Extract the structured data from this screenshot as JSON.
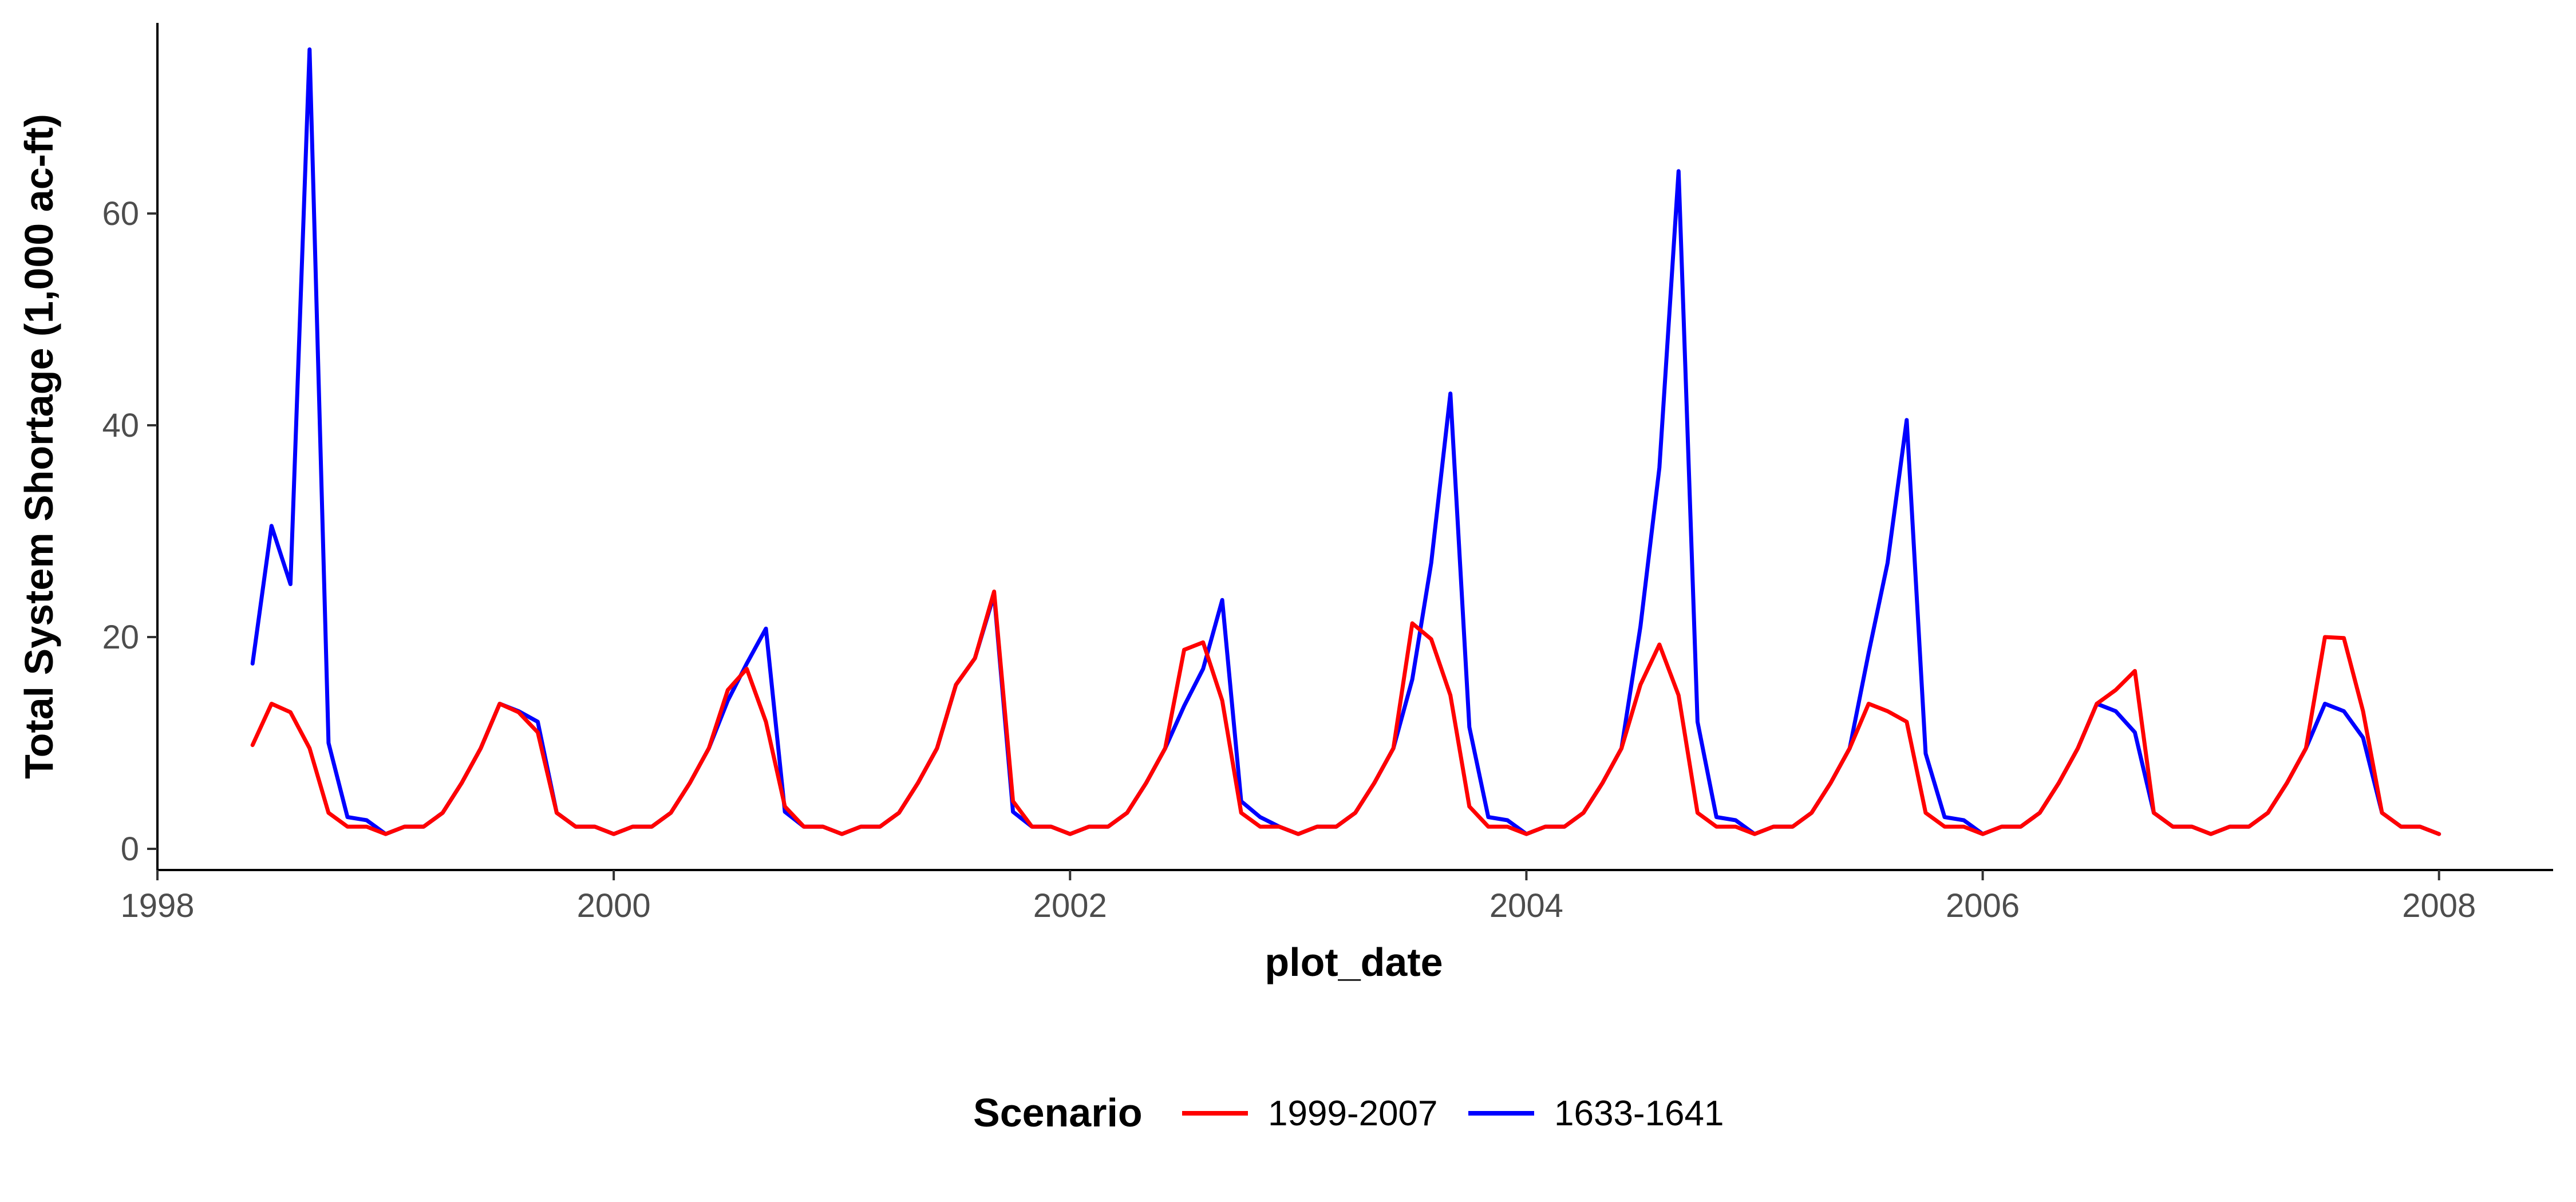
{
  "chart_data": {
    "type": "line",
    "xlabel": "plot_date",
    "ylabel": "Total System Shortage (1,000 ac-ft)",
    "x_ticks": [
      "1998",
      "2000",
      "2002",
      "2004",
      "2006",
      "2008"
    ],
    "y_ticks": [
      "0",
      "20",
      "40",
      "60"
    ],
    "xlim": [
      1998.0,
      2008.5
    ],
    "ylim": [
      -2,
      78
    ],
    "grid": false,
    "legend": {
      "title": "Scenario",
      "position": "bottom"
    },
    "series": [
      {
        "name": "1999-2007",
        "color": "#ff0000",
        "x": [
          1998.417,
          1998.5,
          1998.583,
          1998.667,
          1998.75,
          1998.833,
          1998.917,
          1999.0,
          1999.083,
          1999.167,
          1999.25,
          1999.333,
          1999.417,
          1999.5,
          1999.583,
          1999.667,
          1999.75,
          1999.833,
          1999.917,
          2000.0,
          2000.083,
          2000.167,
          2000.25,
          2000.333,
          2000.417,
          2000.5,
          2000.583,
          2000.667,
          2000.75,
          2000.833,
          2000.917,
          2001.0,
          2001.083,
          2001.167,
          2001.25,
          2001.333,
          2001.417,
          2001.5,
          2001.583,
          2001.667,
          2001.75,
          2001.833,
          2001.917,
          2002.0,
          2002.083,
          2002.167,
          2002.25,
          2002.333,
          2002.417,
          2002.5,
          2002.583,
          2002.667,
          2002.75,
          2002.833,
          2002.917,
          2003.0,
          2003.083,
          2003.167,
          2003.25,
          2003.333,
          2003.417,
          2003.5,
          2003.583,
          2003.667,
          2003.75,
          2003.833,
          2003.917,
          2004.0,
          2004.083,
          2004.167,
          2004.25,
          2004.333,
          2004.417,
          2004.5,
          2004.583,
          2004.667,
          2004.75,
          2004.833,
          2004.917,
          2005.0,
          2005.083,
          2005.167,
          2005.25,
          2005.333,
          2005.417,
          2005.5,
          2005.583,
          2005.667,
          2005.75,
          2005.833,
          2005.917,
          2006.0,
          2006.083,
          2006.167,
          2006.25,
          2006.333,
          2006.417,
          2006.5,
          2006.583,
          2006.667,
          2006.75,
          2006.833,
          2006.917,
          2007.0,
          2007.083,
          2007.167,
          2007.25,
          2007.333,
          2007.417,
          2007.5,
          2007.583,
          2007.667,
          2007.75,
          2007.833,
          2007.917,
          2008.0
        ],
        "values": [
          9.8,
          13.7,
          12.9,
          9.5,
          3.4,
          2.1,
          2.1,
          1.4,
          2.1,
          2.1,
          3.4,
          6.2,
          9.5,
          13.7,
          12.9,
          11.0,
          3.4,
          2.1,
          2.1,
          1.4,
          2.1,
          2.1,
          3.4,
          6.2,
          9.5,
          15.0,
          17.0,
          12.0,
          4.0,
          2.1,
          2.1,
          1.4,
          2.1,
          2.1,
          3.4,
          6.2,
          9.5,
          15.5,
          18.0,
          24.3,
          4.5,
          2.1,
          2.1,
          1.4,
          2.1,
          2.1,
          3.4,
          6.2,
          9.5,
          18.8,
          19.5,
          14.0,
          3.4,
          2.1,
          2.1,
          1.4,
          2.1,
          2.1,
          3.4,
          6.2,
          9.5,
          21.3,
          19.8,
          14.5,
          4.0,
          2.1,
          2.1,
          1.4,
          2.1,
          2.1,
          3.4,
          6.2,
          9.5,
          15.5,
          19.3,
          14.5,
          3.4,
          2.1,
          2.1,
          1.4,
          2.1,
          2.1,
          3.4,
          6.2,
          9.5,
          13.7,
          13.0,
          12.0,
          3.4,
          2.1,
          2.1,
          1.4,
          2.1,
          2.1,
          3.4,
          6.2,
          9.5,
          13.7,
          15.0,
          16.8,
          3.4,
          2.1,
          2.1,
          1.4,
          2.1,
          2.1,
          3.4,
          6.2,
          9.5,
          20.0,
          19.9,
          13.0,
          3.4,
          2.1,
          2.1,
          1.4
        ]
      },
      {
        "name": "1633-1641",
        "color": "#0000ff",
        "x": [
          1998.417,
          1998.5,
          1998.583,
          1998.667,
          1998.75,
          1998.833,
          1998.917,
          1999.0,
          1999.083,
          1999.167,
          1999.25,
          1999.333,
          1999.417,
          1999.5,
          1999.583,
          1999.667,
          1999.75,
          1999.833,
          1999.917,
          2000.0,
          2000.083,
          2000.167,
          2000.25,
          2000.333,
          2000.417,
          2000.5,
          2000.583,
          2000.667,
          2000.75,
          2000.833,
          2000.917,
          2001.0,
          2001.083,
          2001.167,
          2001.25,
          2001.333,
          2001.417,
          2001.5,
          2001.583,
          2001.667,
          2001.75,
          2001.833,
          2001.917,
          2002.0,
          2002.083,
          2002.167,
          2002.25,
          2002.333,
          2002.417,
          2002.5,
          2002.583,
          2002.667,
          2002.75,
          2002.833,
          2002.917,
          2003.0,
          2003.083,
          2003.167,
          2003.25,
          2003.333,
          2003.417,
          2003.5,
          2003.583,
          2003.667,
          2003.75,
          2003.833,
          2003.917,
          2004.0,
          2004.083,
          2004.167,
          2004.25,
          2004.333,
          2004.417,
          2004.5,
          2004.583,
          2004.667,
          2004.75,
          2004.833,
          2004.917,
          2005.0,
          2005.083,
          2005.167,
          2005.25,
          2005.333,
          2005.417,
          2005.5,
          2005.583,
          2005.667,
          2005.75,
          2005.833,
          2005.917,
          2006.0,
          2006.083,
          2006.167,
          2006.25,
          2006.333,
          2006.417,
          2006.5,
          2006.583,
          2006.667,
          2006.75,
          2006.833,
          2006.917,
          2007.0,
          2007.083,
          2007.167,
          2007.25,
          2007.333,
          2007.417,
          2007.5,
          2007.583,
          2007.667,
          2007.75,
          2007.833,
          2007.917,
          2008.0
        ],
        "values": [
          17.5,
          30.5,
          25.0,
          75.5,
          10.0,
          3.0,
          2.7,
          1.4,
          2.1,
          2.1,
          3.4,
          6.2,
          9.5,
          13.7,
          13.0,
          12.0,
          3.4,
          2.1,
          2.1,
          1.4,
          2.1,
          2.1,
          3.4,
          6.2,
          9.5,
          14.0,
          17.5,
          20.8,
          3.5,
          2.1,
          2.1,
          1.4,
          2.1,
          2.1,
          3.4,
          6.2,
          9.5,
          15.5,
          18.0,
          24.0,
          3.5,
          2.1,
          2.1,
          1.4,
          2.1,
          2.1,
          3.4,
          6.2,
          9.5,
          13.5,
          17.0,
          23.5,
          4.5,
          3.0,
          2.1,
          1.4,
          2.1,
          2.1,
          3.4,
          6.2,
          9.5,
          16.0,
          27.0,
          43.0,
          11.5,
          3.0,
          2.7,
          1.4,
          2.1,
          2.1,
          3.4,
          6.2,
          9.5,
          21.0,
          36.0,
          64.0,
          12.0,
          3.0,
          2.7,
          1.4,
          2.1,
          2.1,
          3.4,
          6.2,
          9.5,
          18.5,
          27.0,
          40.5,
          9.0,
          3.0,
          2.7,
          1.4,
          2.1,
          2.1,
          3.4,
          6.2,
          9.5,
          13.7,
          13.0,
          11.0,
          3.4,
          2.1,
          2.1,
          1.4,
          2.1,
          2.1,
          3.4,
          6.2,
          9.5,
          13.7,
          13.0,
          10.5,
          3.4,
          2.1,
          2.1,
          1.4
        ]
      }
    ]
  }
}
